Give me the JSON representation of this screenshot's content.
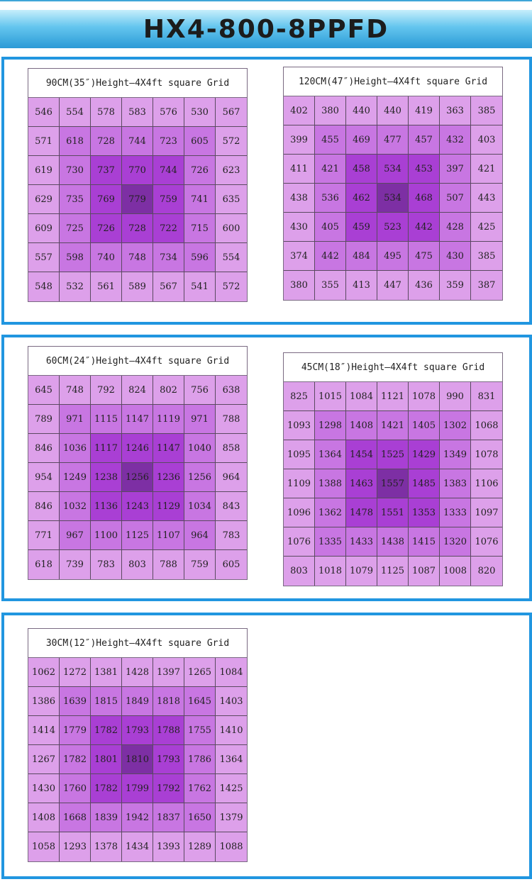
{
  "title": "HX4-800-8PPFD",
  "colors": {
    "level0": "#dda0ea",
    "level1": "#c876e2",
    "level2": "#a93fd4",
    "level3": "#7d2fa4",
    "accent": "#2196e0"
  },
  "chart_data": [
    {
      "type": "heatmap",
      "title": "90CM(35″)Height—4X4ft square Grid",
      "values": [
        [
          546,
          554,
          578,
          583,
          576,
          530,
          567
        ],
        [
          571,
          618,
          728,
          744,
          723,
          605,
          572
        ],
        [
          619,
          730,
          737,
          770,
          744,
          726,
          623
        ],
        [
          629,
          735,
          769,
          779,
          759,
          741,
          635
        ],
        [
          609,
          725,
          726,
          728,
          722,
          715,
          600
        ],
        [
          557,
          598,
          740,
          748,
          734,
          596,
          554
        ],
        [
          548,
          532,
          561,
          589,
          567,
          541,
          572
        ]
      ]
    },
    {
      "type": "heatmap",
      "title": "120CM(47″)Height—4X4ft square Grid",
      "values": [
        [
          402,
          380,
          440,
          440,
          419,
          363,
          385
        ],
        [
          399,
          455,
          469,
          477,
          457,
          432,
          403
        ],
        [
          411,
          421,
          458,
          534,
          453,
          397,
          421
        ],
        [
          438,
          536,
          462,
          534,
          468,
          507,
          443
        ],
        [
          430,
          405,
          459,
          523,
          442,
          428,
          425
        ],
        [
          374,
          442,
          484,
          495,
          475,
          430,
          385
        ],
        [
          380,
          355,
          413,
          447,
          436,
          359,
          387
        ]
      ]
    },
    {
      "type": "heatmap",
      "title": "60CM(24″)Height—4X4ft square Grid",
      "values": [
        [
          645,
          748,
          792,
          824,
          802,
          756,
          638
        ],
        [
          789,
          971,
          1115,
          1147,
          1119,
          971,
          788
        ],
        [
          846,
          1036,
          1117,
          1246,
          1147,
          1040,
          858
        ],
        [
          954,
          1249,
          1238,
          1256,
          1236,
          1256,
          964
        ],
        [
          846,
          1032,
          1136,
          1243,
          1129,
          1034,
          843
        ],
        [
          771,
          967,
          1100,
          1125,
          1107,
          964,
          783
        ],
        [
          618,
          739,
          783,
          803,
          788,
          759,
          605
        ]
      ]
    },
    {
      "type": "heatmap",
      "title": "45CM(18″)Height—4X4ft square Grid",
      "values": [
        [
          825,
          1015,
          1084,
          1121,
          1078,
          990,
          831
        ],
        [
          1093,
          1298,
          1408,
          1421,
          1405,
          1302,
          1068
        ],
        [
          1095,
          1364,
          1454,
          1525,
          1429,
          1349,
          1078
        ],
        [
          1109,
          1388,
          1463,
          1557,
          1485,
          1383,
          1106
        ],
        [
          1096,
          1362,
          1478,
          1551,
          1353,
          1333,
          1097
        ],
        [
          1076,
          1335,
          1433,
          1438,
          1415,
          1320,
          1076
        ],
        [
          803,
          1018,
          1079,
          1125,
          1087,
          1008,
          820
        ]
      ]
    },
    {
      "type": "heatmap",
      "title": "30CM(12″)Height—4X4ft square Grid",
      "values": [
        [
          1062,
          1272,
          1381,
          1428,
          1397,
          1265,
          1084
        ],
        [
          1386,
          1639,
          1815,
          1849,
          1818,
          1645,
          1403
        ],
        [
          1414,
          1779,
          1782,
          1793,
          1788,
          1755,
          1410
        ],
        [
          1267,
          1782,
          1801,
          1810,
          1793,
          1786,
          1364
        ],
        [
          1430,
          1760,
          1782,
          1799,
          1792,
          1762,
          1425
        ],
        [
          1408,
          1668,
          1839,
          1942,
          1837,
          1650,
          1379
        ],
        [
          1058,
          1293,
          1378,
          1434,
          1393,
          1289,
          1088
        ]
      ]
    }
  ]
}
